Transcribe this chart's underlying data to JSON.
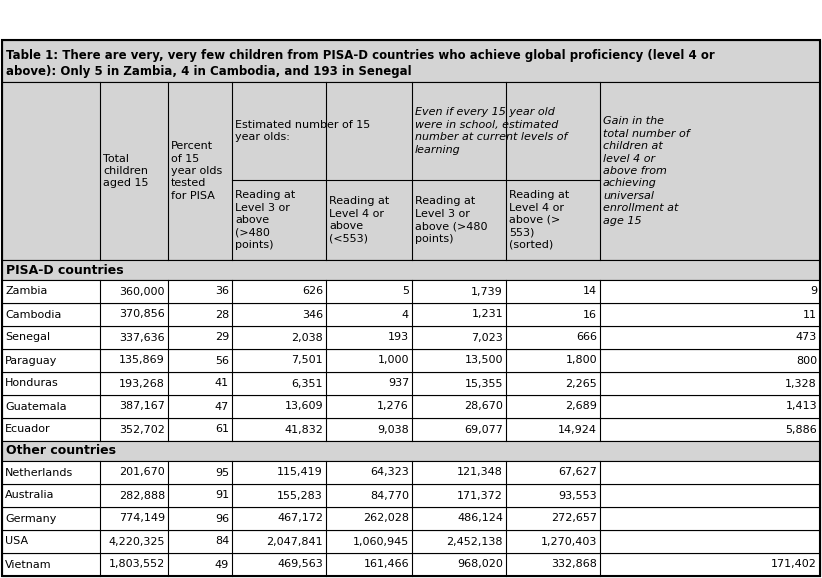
{
  "title_line1": "Table 1: There are very, very few children from PISA-D countries who achieve global proficiency (level 4 or",
  "title_line2": "above): Only 5 in Zambia, 4 in Cambodia, and 193 in Senegal",
  "header_top_labels": [
    "Estimated number of 15\nyear olds:",
    "Even if every 15 year old\nwere in school, estimated\nnumber at current levels of\nlearning"
  ],
  "header_span_labels": [
    "Total\nchildren\naged 15",
    "Percent\nof 15\nyear olds\ntested\nfor PISA",
    "Reading at\nLevel 3 or\nabove\n(>480\npoints)",
    "Reading at\nLevel 4 or\nabove\n(<553)",
    "Reading at\nLevel 3 or\nabove (>480\npoints)",
    "Reading at\nLevel 4 or\nabove (>\n553)\n(sorted)",
    "Gain in the\ntotal number of\nchildren at\nlevel 4 or\nabove from\nachieving\nuniversal\nenrollment at\nage 15"
  ],
  "section1_label": "PISA-D countries",
  "section2_label": "Other countries",
  "pisa_rows": [
    [
      "Zambia",
      "360,000",
      "36",
      "626",
      "5",
      "1,739",
      "14",
      "9"
    ],
    [
      "Cambodia",
      "370,856",
      "28",
      "346",
      "4",
      "1,231",
      "16",
      "11"
    ],
    [
      "Senegal",
      "337,636",
      "29",
      "2,038",
      "193",
      "7,023",
      "666",
      "473"
    ],
    [
      "Paraguay",
      "135,869",
      "56",
      "7,501",
      "1,000",
      "13,500",
      "1,800",
      "800"
    ],
    [
      "Honduras",
      "193,268",
      "41",
      "6,351",
      "937",
      "15,355",
      "2,265",
      "1,328"
    ],
    [
      "Guatemala",
      "387,167",
      "47",
      "13,609",
      "1,276",
      "28,670",
      "2,689",
      "1,413"
    ],
    [
      "Ecuador",
      "352,702",
      "61",
      "41,832",
      "9,038",
      "69,077",
      "14,924",
      "5,886"
    ]
  ],
  "other_rows": [
    [
      "Netherlands",
      "201,670",
      "95",
      "115,419",
      "64,323",
      "121,348",
      "67,627",
      ""
    ],
    [
      "Australia",
      "282,888",
      "91",
      "155,283",
      "84,770",
      "171,372",
      "93,553",
      ""
    ],
    [
      "Germany",
      "774,149",
      "96",
      "467,172",
      "262,028",
      "486,124",
      "272,657",
      ""
    ],
    [
      "USA",
      "4,220,325",
      "84",
      "2,047,841",
      "1,060,945",
      "2,452,138",
      "1,270,403",
      ""
    ],
    [
      "Vietnam",
      "1,803,552",
      "49",
      "469,563",
      "161,466",
      "968,020",
      "332,868",
      "171,402"
    ]
  ],
  "bg_gray": "#d4d4d4",
  "bg_white": "#ffffff",
  "border": "#000000",
  "figsize": [
    8.22,
    5.78
  ],
  "dpi": 100
}
